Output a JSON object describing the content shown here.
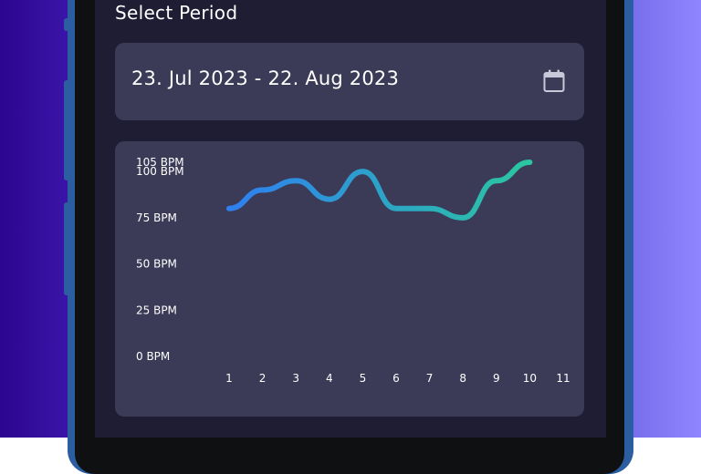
{
  "section_title": "Select Period",
  "date_range": {
    "label": "23. Jul 2023 - 22. Aug 2023",
    "icon": "calendar-icon"
  },
  "colors": {
    "line_start": "#2f7ff0",
    "line_end": "#2bc6a0",
    "card": "#3b3a57",
    "screen": "#1f1d33"
  },
  "chart_data": {
    "type": "line",
    "x": [
      1,
      2,
      3,
      4,
      5,
      6,
      7,
      8,
      9,
      10
    ],
    "xticks": [
      "1",
      "2",
      "3",
      "4",
      "5",
      "6",
      "7",
      "8",
      "9",
      "10",
      "11"
    ],
    "values": [
      80,
      90,
      95,
      85,
      100,
      80,
      80,
      75,
      95,
      105
    ],
    "yticks": [
      "0 BPM",
      "25 BPM",
      "50 BPM",
      "75 BPM",
      "100 BPM",
      "105 BPM"
    ],
    "ytick_values": [
      0,
      25,
      50,
      75,
      100,
      105
    ],
    "ylim": [
      0,
      105
    ],
    "xlim": [
      1,
      11
    ],
    "grid": false,
    "title": "",
    "xlabel": "",
    "ylabel": ""
  }
}
